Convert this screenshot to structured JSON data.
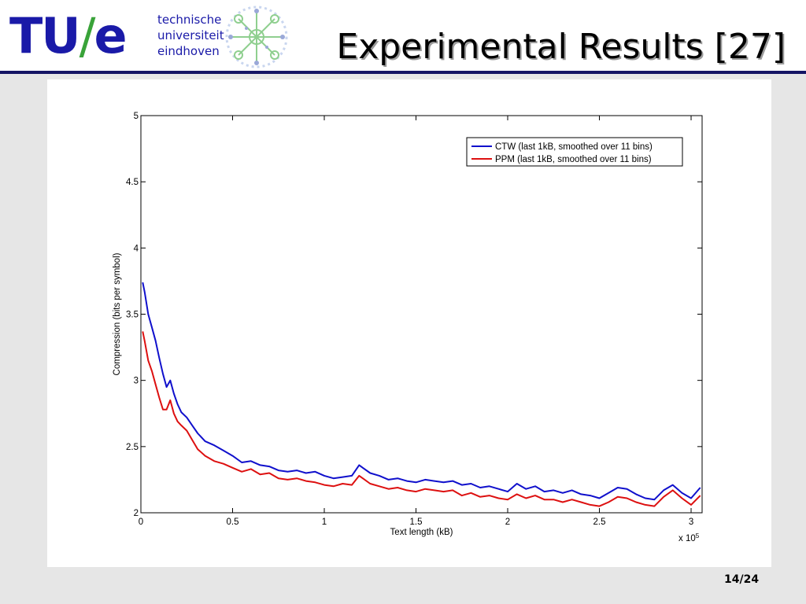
{
  "header": {
    "logo": {
      "mark": "TU/e",
      "mark_main": "TU",
      "mark_slash": "/",
      "mark_e": "e",
      "lines": [
        "technische",
        "universiteit",
        "eindhoven"
      ]
    },
    "title": "Experimental Results [27]",
    "rule_color": "#141464",
    "logo_blue": "#1a1aa8",
    "logo_green": "#39a339"
  },
  "footer": {
    "page": "14/24"
  },
  "chart_data": {
    "type": "line",
    "title": "",
    "xlabel": "Text length (kB)",
    "ylabel": "Compression (bits per symbol)",
    "x_multiplier": "x 10",
    "x_multiplier_exponent": "5",
    "xlim": [
      0,
      306000
    ],
    "ylim": [
      2,
      5
    ],
    "xticks": [
      0,
      50000,
      100000,
      150000,
      200000,
      250000,
      300000
    ],
    "xtick_labels": [
      "0",
      "0.5",
      "1",
      "1.5",
      "2",
      "2.5",
      "3"
    ],
    "yticks": [
      2,
      2.5,
      3,
      3.5,
      4,
      4.5,
      5
    ],
    "ytick_labels": [
      "2",
      "2.5",
      "3",
      "3.5",
      "4",
      "4.5",
      "5"
    ],
    "grid": false,
    "legend_position": "top-right",
    "series": [
      {
        "name": "CTW (last 1kB, smoothed over 11 bins)",
        "color": "#1010cc",
        "x": [
          1000,
          2000,
          4000,
          6000,
          8000,
          10000,
          12000,
          14000,
          16000,
          18000,
          20000,
          22000,
          25000,
          28000,
          31000,
          35000,
          40000,
          45000,
          50000,
          55000,
          60000,
          65000,
          70000,
          75000,
          80000,
          85000,
          90000,
          95000,
          100000,
          105000,
          110000,
          115000,
          119000,
          121000,
          125000,
          130000,
          135000,
          140000,
          145000,
          150000,
          155000,
          160000,
          165000,
          170000,
          175000,
          180000,
          185000,
          190000,
          195000,
          200000,
          205000,
          210000,
          215000,
          220000,
          225000,
          230000,
          235000,
          240000,
          245000,
          250000,
          255000,
          260000,
          265000,
          270000,
          275000,
          280000,
          285000,
          290000,
          295000,
          300000,
          305000
        ],
        "y": [
          3.74,
          3.67,
          3.5,
          3.4,
          3.3,
          3.17,
          3.05,
          2.95,
          3.0,
          2.9,
          2.82,
          2.76,
          2.72,
          2.66,
          2.6,
          2.54,
          2.51,
          2.47,
          2.43,
          2.38,
          2.39,
          2.36,
          2.35,
          2.32,
          2.31,
          2.32,
          2.3,
          2.31,
          2.28,
          2.26,
          2.27,
          2.28,
          2.36,
          2.34,
          2.3,
          2.28,
          2.25,
          2.26,
          2.24,
          2.23,
          2.25,
          2.24,
          2.23,
          2.24,
          2.21,
          2.22,
          2.19,
          2.2,
          2.18,
          2.16,
          2.22,
          2.18,
          2.2,
          2.16,
          2.17,
          2.15,
          2.17,
          2.14,
          2.13,
          2.11,
          2.15,
          2.19,
          2.18,
          2.14,
          2.11,
          2.1,
          2.17,
          2.21,
          2.15,
          2.11,
          2.19
        ]
      },
      {
        "name": "PPM (last 1kB, smoothed over 11 bins)",
        "color": "#dd1010",
        "x": [
          1000,
          2000,
          4000,
          6000,
          8000,
          10000,
          12000,
          14000,
          16000,
          18000,
          20000,
          22000,
          25000,
          28000,
          31000,
          35000,
          40000,
          45000,
          50000,
          55000,
          60000,
          65000,
          70000,
          75000,
          80000,
          85000,
          90000,
          95000,
          100000,
          105000,
          110000,
          115000,
          119000,
          121000,
          125000,
          130000,
          135000,
          140000,
          145000,
          150000,
          155000,
          160000,
          165000,
          170000,
          175000,
          180000,
          185000,
          190000,
          195000,
          200000,
          205000,
          210000,
          215000,
          220000,
          225000,
          230000,
          235000,
          240000,
          245000,
          250000,
          255000,
          260000,
          265000,
          270000,
          275000,
          280000,
          285000,
          290000,
          295000,
          300000,
          305000
        ],
        "y": [
          3.37,
          3.3,
          3.15,
          3.07,
          2.97,
          2.87,
          2.78,
          2.78,
          2.85,
          2.75,
          2.69,
          2.66,
          2.62,
          2.55,
          2.48,
          2.43,
          2.39,
          2.37,
          2.34,
          2.31,
          2.33,
          2.29,
          2.3,
          2.26,
          2.25,
          2.26,
          2.24,
          2.23,
          2.21,
          2.2,
          2.22,
          2.21,
          2.28,
          2.26,
          2.22,
          2.2,
          2.18,
          2.19,
          2.17,
          2.16,
          2.18,
          2.17,
          2.16,
          2.17,
          2.13,
          2.15,
          2.12,
          2.13,
          2.11,
          2.1,
          2.14,
          2.11,
          2.13,
          2.1,
          2.1,
          2.08,
          2.1,
          2.08,
          2.06,
          2.05,
          2.08,
          2.12,
          2.11,
          2.08,
          2.06,
          2.05,
          2.12,
          2.17,
          2.11,
          2.06,
          2.13
        ]
      }
    ]
  }
}
